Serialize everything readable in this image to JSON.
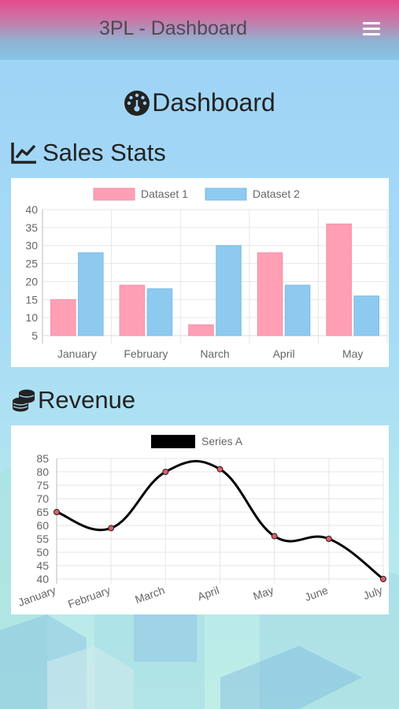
{
  "app": {
    "title": "3PL - Dashboard",
    "menu_icon": "hamburger-menu-icon"
  },
  "page": {
    "title": "Dashboard",
    "icon": "tachometer-icon"
  },
  "sections": {
    "sales": {
      "title": "Sales Stats",
      "icon": "line-chart-icon"
    },
    "revenue": {
      "title": "Revenue",
      "icon": "coins-icon"
    }
  },
  "chart_data": [
    {
      "type": "bar",
      "categories": [
        "January",
        "February",
        "Narch",
        "April",
        "May"
      ],
      "series": [
        {
          "name": "Dataset 1",
          "values": [
            15,
            19,
            8,
            28,
            36
          ],
          "color": "#ff9fb5",
          "border": "#f58fa6"
        },
        {
          "name": "Dataset 2",
          "values": [
            28,
            18,
            30,
            19,
            16
          ],
          "color": "#8ec9f0",
          "border": "#7dbbe6"
        }
      ],
      "yticks": [
        5,
        10,
        15,
        20,
        25,
        30,
        35,
        40
      ],
      "ylim": [
        5,
        40
      ],
      "grid": true,
      "legend": "top"
    },
    {
      "type": "line",
      "categories": [
        "January",
        "February",
        "March",
        "April",
        "May",
        "June",
        "July"
      ],
      "series": [
        {
          "name": "Series A",
          "values": [
            65,
            59,
            80,
            81,
            56,
            55,
            40
          ],
          "color": "#000000",
          "point_color": "#e05b6a"
        }
      ],
      "yticks": [
        40,
        45,
        50,
        55,
        60,
        65,
        70,
        75,
        80,
        85
      ],
      "ylim": [
        40,
        85
      ],
      "grid": true,
      "legend": "top"
    }
  ]
}
